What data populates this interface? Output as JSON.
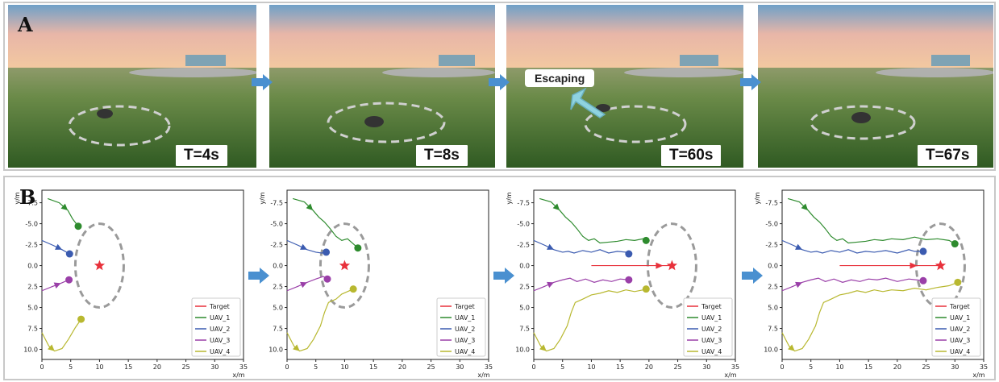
{
  "panels": {
    "top_letter": "A",
    "bottom_letter": "B"
  },
  "scenes": [
    {
      "time": "T=4s"
    },
    {
      "time": "T=8s"
    },
    {
      "time": "T=60s",
      "annotation": "Escaping"
    },
    {
      "time": "T=67s"
    }
  ],
  "chart_data": [
    {
      "type": "line",
      "xlabel": "x/m",
      "ylabel": "y/m",
      "xlim": [
        0,
        35
      ],
      "ylim": [
        -9,
        11.2
      ],
      "y_inverted": true,
      "xticks": [
        "0",
        "5",
        "10",
        "15",
        "20",
        "25",
        "30",
        "35"
      ],
      "yticks": [
        "-7.5",
        "-5.0",
        "-2.5",
        "0.0",
        "2.5",
        "5.0",
        "7.5",
        "10.0"
      ],
      "legend_position": "lower-right",
      "series": [
        {
          "name": "Target",
          "color": "#e8313b",
          "x": [],
          "y": []
        },
        {
          "name": "UAV_1",
          "color": "#2e8b2e",
          "x": [
            1,
            3,
            4.5,
            5.3,
            6.3
          ],
          "y": [
            -8,
            -7.5,
            -6.6,
            -5.6,
            -4.7
          ]
        },
        {
          "name": "UAV_2",
          "color": "#3b5bb0",
          "x": [
            0,
            2,
            3.5,
            4.8
          ],
          "y": [
            -3,
            -2.4,
            -1.9,
            -1.4
          ]
        },
        {
          "name": "UAV_3",
          "color": "#9a3fa8",
          "x": [
            0,
            1.8,
            3.3,
            4.7
          ],
          "y": [
            3,
            2.5,
            2.1,
            1.7
          ]
        },
        {
          "name": "UAV_4",
          "color": "#b8b830",
          "x": [
            0,
            1.2,
            2.2,
            3.5,
            4.6,
            5.8,
            6.8
          ],
          "y": [
            8,
            9.6,
            10.2,
            9.9,
            8.8,
            7.4,
            6.4
          ]
        }
      ],
      "target_marker": {
        "x": 10,
        "y": 0
      },
      "encircle": {
        "cx": 10,
        "cy": 0,
        "r": 4
      }
    },
    {
      "type": "line",
      "xlabel": "x/m",
      "ylabel": "y/m",
      "xlim": [
        0,
        35
      ],
      "ylim": [
        -9,
        11.2
      ],
      "y_inverted": true,
      "xticks": [
        "0",
        "5",
        "10",
        "15",
        "20",
        "25",
        "30",
        "35"
      ],
      "yticks": [
        "-7.5",
        "-5.0",
        "-2.5",
        "0.0",
        "2.5",
        "5.0",
        "7.5",
        "10.0"
      ],
      "legend_position": "lower-right",
      "series": [
        {
          "name": "Target",
          "color": "#e8313b",
          "x": [],
          "y": []
        },
        {
          "name": "UAV_1",
          "color": "#2e8b2e",
          "x": [
            1,
            3,
            4.5,
            5.5,
            6.5,
            7.5,
            8.5,
            9.5,
            10.5,
            11.5,
            12.3
          ],
          "y": [
            -8,
            -7.6,
            -6.6,
            -5.8,
            -5.2,
            -4.4,
            -3.5,
            -3.0,
            -3.2,
            -2.6,
            -2.1
          ]
        },
        {
          "name": "UAV_2",
          "color": "#3b5bb0",
          "x": [
            0,
            2,
            3.5,
            5,
            6,
            6.8
          ],
          "y": [
            -3,
            -2.4,
            -1.9,
            -1.6,
            -1.5,
            -1.6
          ]
        },
        {
          "name": "UAV_3",
          "color": "#9a3fa8",
          "x": [
            0,
            1.8,
            3.5,
            5,
            6.3,
            7
          ],
          "y": [
            3,
            2.5,
            2.0,
            1.6,
            1.3,
            1.6
          ]
        },
        {
          "name": "UAV_4",
          "color": "#b8b830",
          "x": [
            0,
            1.2,
            2.2,
            3.5,
            4.6,
            5.8,
            6.5,
            7.2,
            8.5,
            9.5,
            10.5,
            11.5
          ],
          "y": [
            8,
            9.6,
            10.2,
            9.9,
            8.8,
            7.2,
            5.6,
            4.4,
            4.0,
            3.4,
            3.1,
            2.8
          ]
        }
      ],
      "target_marker": {
        "x": 10,
        "y": 0
      },
      "encircle": {
        "cx": 10,
        "cy": 0,
        "r": 4
      }
    },
    {
      "type": "line",
      "xlabel": "x/m",
      "ylabel": "y/m",
      "xlim": [
        0,
        35
      ],
      "ylim": [
        -9,
        11.2
      ],
      "y_inverted": true,
      "xticks": [
        "0",
        "5",
        "10",
        "15",
        "20",
        "25",
        "30",
        "35"
      ],
      "yticks": [
        "-7.5",
        "-5.0",
        "-2.5",
        "0.0",
        "2.5",
        "5.0",
        "7.5",
        "10.0"
      ],
      "legend_position": "lower-right",
      "series": [
        {
          "name": "Target",
          "color": "#e8313b",
          "x": [
            10,
            15,
            20,
            24
          ],
          "y": [
            0,
            0,
            0,
            0
          ]
        },
        {
          "name": "UAV_1",
          "color": "#2e8b2e",
          "x": [
            1,
            3,
            4.5,
            5.5,
            6.5,
            7.5,
            8.5,
            9.5,
            10.5,
            11.5,
            13,
            14.5,
            16,
            17.5,
            19,
            19.5
          ],
          "y": [
            -8,
            -7.6,
            -6.6,
            -5.8,
            -5.2,
            -4.4,
            -3.5,
            -3.0,
            -3.2,
            -2.7,
            -2.8,
            -2.9,
            -3.1,
            -3.0,
            -3.2,
            -3.0
          ]
        },
        {
          "name": "UAV_2",
          "color": "#3b5bb0",
          "x": [
            0,
            2,
            3.5,
            5,
            6,
            7,
            8.5,
            10,
            11.5,
            13,
            14.5,
            16,
            16.5
          ],
          "y": [
            -3,
            -2.4,
            -1.9,
            -1.6,
            -1.7,
            -1.5,
            -1.8,
            -1.6,
            -1.9,
            -1.5,
            -1.7,
            -1.6,
            -1.4
          ]
        },
        {
          "name": "UAV_3",
          "color": "#9a3fa8",
          "x": [
            0,
            1.8,
            3.5,
            5,
            6.3,
            7.5,
            9,
            10.5,
            12,
            13.5,
            15,
            16.5
          ],
          "y": [
            3,
            2.5,
            2.0,
            1.7,
            1.5,
            1.9,
            1.6,
            2.0,
            1.7,
            1.9,
            1.6,
            1.7
          ]
        },
        {
          "name": "UAV_4",
          "color": "#b8b830",
          "x": [
            0,
            1.2,
            2.2,
            3.5,
            4.6,
            5.8,
            6.5,
            7.2,
            8.5,
            10,
            11.5,
            13,
            14.5,
            16,
            17.5,
            19,
            19.5
          ],
          "y": [
            8,
            9.6,
            10.2,
            9.9,
            8.8,
            7.2,
            5.6,
            4.4,
            4.0,
            3.5,
            3.3,
            3.0,
            3.2,
            2.9,
            3.1,
            2.9,
            2.8
          ]
        }
      ],
      "target_marker": {
        "x": 24,
        "y": 0
      },
      "encircle": {
        "cx": 24,
        "cy": 0,
        "r": 4
      }
    },
    {
      "type": "line",
      "xlabel": "x/m",
      "ylabel": "y/m",
      "xlim": [
        0,
        35
      ],
      "ylim": [
        -9,
        11.2
      ],
      "y_inverted": true,
      "xticks": [
        "0",
        "5",
        "10",
        "15",
        "20",
        "25",
        "30",
        "35"
      ],
      "yticks": [
        "-7.5",
        "-5.0",
        "-2.5",
        "0.0",
        "2.5",
        "5.0",
        "7.5",
        "10.0"
      ],
      "legend_position": "lower-right",
      "series": [
        {
          "name": "Target",
          "color": "#e8313b",
          "x": [
            10,
            15,
            20,
            25,
            27.5
          ],
          "y": [
            0,
            0,
            0,
            0,
            0
          ]
        },
        {
          "name": "UAV_1",
          "color": "#2e8b2e",
          "x": [
            1,
            3,
            4.5,
            5.5,
            6.5,
            7.5,
            8.5,
            9.5,
            10.5,
            11.5,
            13,
            14.5,
            16,
            17.5,
            19,
            21,
            23,
            25,
            27,
            29,
            30
          ],
          "y": [
            -8,
            -7.6,
            -6.6,
            -5.8,
            -5.2,
            -4.4,
            -3.5,
            -3.0,
            -3.2,
            -2.7,
            -2.8,
            -2.9,
            -3.1,
            -3.0,
            -3.2,
            -3.1,
            -3.4,
            -3.1,
            -3.2,
            -3.0,
            -2.6
          ]
        },
        {
          "name": "UAV_2",
          "color": "#3b5bb0",
          "x": [
            0,
            2,
            3.5,
            5,
            6,
            7,
            8.5,
            10,
            11.5,
            13,
            14.5,
            16,
            18,
            20,
            22,
            23,
            24.5
          ],
          "y": [
            -3,
            -2.4,
            -1.9,
            -1.6,
            -1.7,
            -1.5,
            -1.8,
            -1.6,
            -1.9,
            -1.5,
            -1.7,
            -1.6,
            -1.8,
            -1.5,
            -1.9,
            -1.7,
            -1.7
          ]
        },
        {
          "name": "UAV_3",
          "color": "#9a3fa8",
          "x": [
            0,
            1.8,
            3.5,
            5,
            6.3,
            7.5,
            9,
            10.5,
            12,
            13.5,
            15,
            16.5,
            18,
            20,
            22,
            24.5
          ],
          "y": [
            3,
            2.5,
            2.0,
            1.7,
            1.5,
            1.9,
            1.6,
            2.0,
            1.7,
            1.9,
            1.6,
            1.7,
            1.5,
            1.9,
            1.6,
            1.8
          ]
        },
        {
          "name": "UAV_4",
          "color": "#b8b830",
          "x": [
            0,
            1.2,
            2.2,
            3.5,
            4.6,
            5.8,
            6.5,
            7.2,
            8.5,
            10,
            11.5,
            13,
            14.5,
            16,
            17.5,
            19,
            21,
            23,
            25,
            27,
            29,
            30.5
          ],
          "y": [
            8,
            9.6,
            10.2,
            9.9,
            8.8,
            7.2,
            5.6,
            4.4,
            4.0,
            3.5,
            3.3,
            3.0,
            3.2,
            2.9,
            3.1,
            2.9,
            3.0,
            2.7,
            2.9,
            2.6,
            2.4,
            2.0
          ]
        }
      ],
      "target_marker": {
        "x": 27.5,
        "y": 0
      },
      "encircle": {
        "cx": 27.5,
        "cy": 0,
        "r": 4
      }
    }
  ]
}
